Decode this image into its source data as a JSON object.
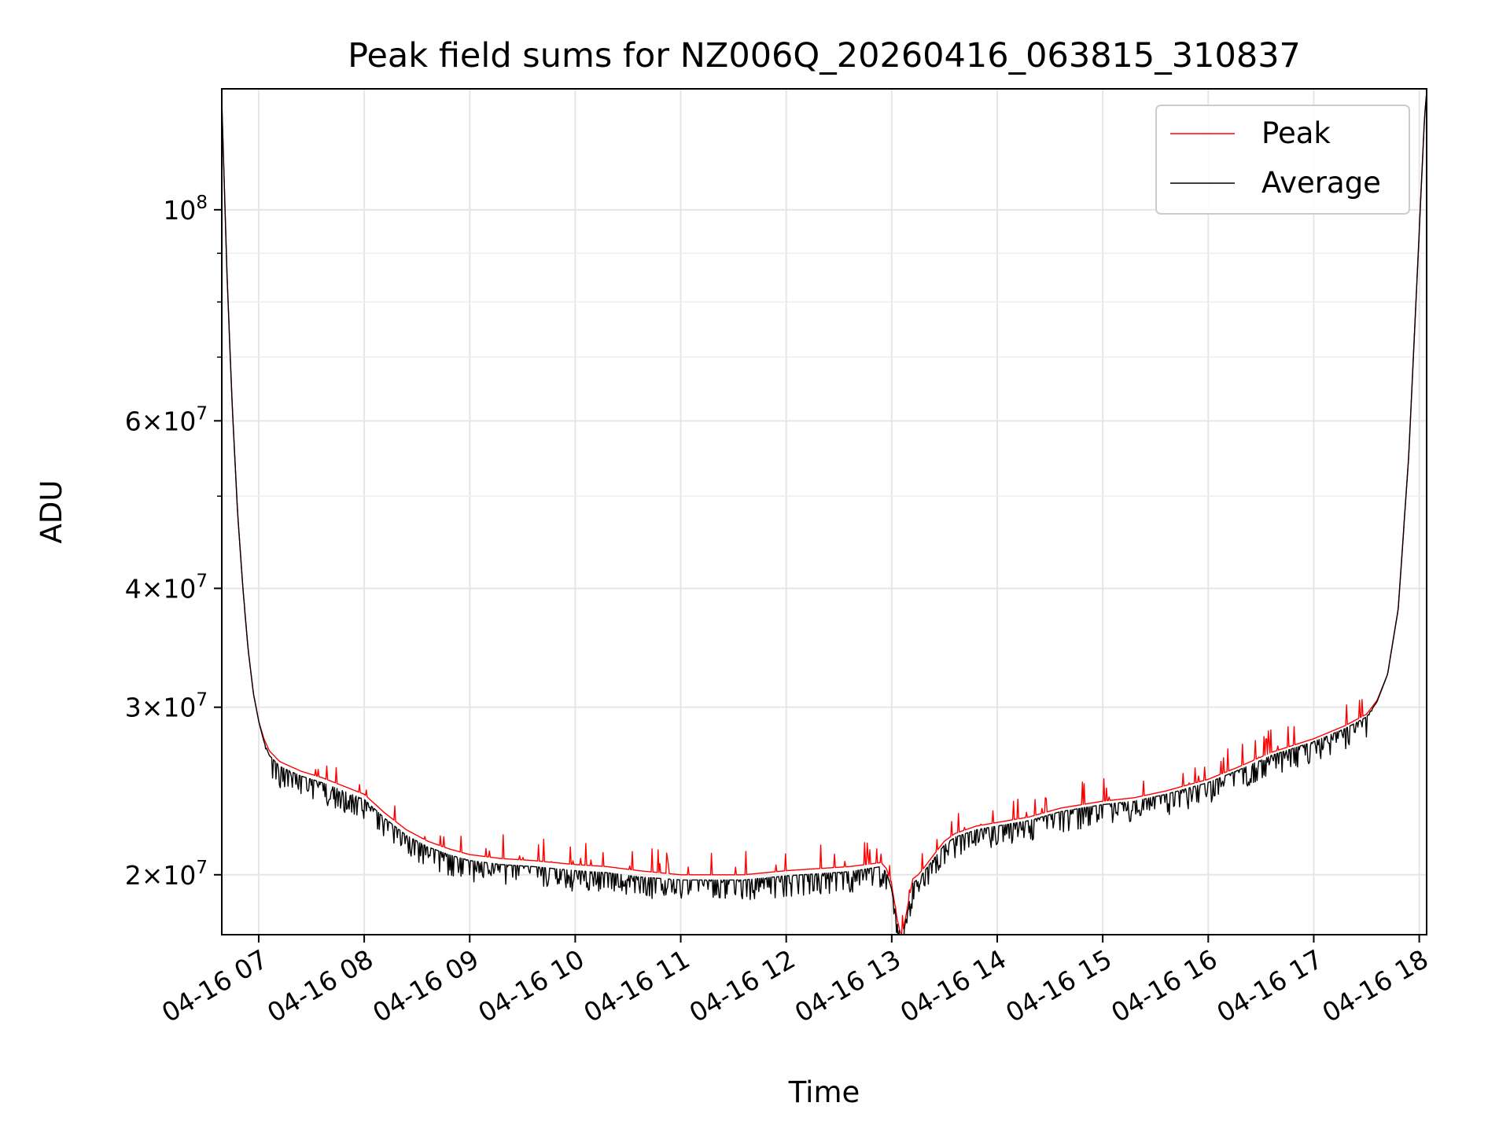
{
  "chart_data": {
    "type": "line",
    "title": "Peak field sums for NZ006Q_20260416_063815_310837",
    "xlabel": "Time",
    "ylabel": "ADU",
    "yscale": "log",
    "ylim": [
      17300000,
      134000000
    ],
    "xlim_hours": [
      6.65,
      18.07
    ],
    "grid": true,
    "legend_position": "upper right",
    "x_ticks": [
      {
        "value": 7,
        "label": "04-16 07"
      },
      {
        "value": 8,
        "label": "04-16 08"
      },
      {
        "value": 9,
        "label": "04-16 09"
      },
      {
        "value": 10,
        "label": "04-16 10"
      },
      {
        "value": 11,
        "label": "04-16 11"
      },
      {
        "value": 12,
        "label": "04-16 12"
      },
      {
        "value": 13,
        "label": "04-16 13"
      },
      {
        "value": 14,
        "label": "04-16 14"
      },
      {
        "value": 15,
        "label": "04-16 15"
      },
      {
        "value": 16,
        "label": "04-16 16"
      },
      {
        "value": 17,
        "label": "04-16 17"
      },
      {
        "value": 18,
        "label": "04-16 18"
      }
    ],
    "y_ticks": [
      {
        "value": 20000000,
        "mant": "2",
        "exp": "7"
      },
      {
        "value": 30000000,
        "mant": "3",
        "exp": "7"
      },
      {
        "value": 40000000,
        "mant": "4",
        "exp": "7"
      },
      {
        "value": 60000000,
        "mant": "6",
        "exp": "7"
      },
      {
        "value": 100000000,
        "mant": "",
        "exp": "8"
      }
    ],
    "y_minor_ticks": [
      50000000,
      70000000,
      80000000,
      90000000
    ],
    "times_hours": [
      6.65,
      6.7,
      6.75,
      6.8,
      6.85,
      6.9,
      6.95,
      7.0,
      7.05,
      7.1,
      7.2,
      7.4,
      7.6,
      7.8,
      8.0,
      8.2,
      8.4,
      8.6,
      8.8,
      9.0,
      9.3,
      9.6,
      10.0,
      10.3,
      10.6,
      11.0,
      11.3,
      11.6,
      12.0,
      12.3,
      12.6,
      12.9,
      12.95,
      13.0,
      13.05,
      13.08,
      13.1,
      13.15,
      13.2,
      13.25,
      13.3,
      13.4,
      13.5,
      13.6,
      13.8,
      14.0,
      14.3,
      14.6,
      15.0,
      15.3,
      15.6,
      16.0,
      16.3,
      16.6,
      17.0,
      17.3,
      17.5,
      17.6,
      17.7,
      17.8,
      17.9,
      18.0,
      18.05,
      18.07
    ],
    "series": [
      {
        "name": "Peak",
        "color": "#ff0000",
        "values": [
          130000000,
          85000000,
          62000000,
          48000000,
          40000000,
          34500000,
          31000000,
          29000000,
          27800000,
          27000000,
          26300000,
          25700000,
          25300000,
          24800000,
          24300000,
          23200000,
          22300000,
          21700000,
          21300000,
          21000000,
          20800000,
          20700000,
          20500000,
          20400000,
          20200000,
          20000000,
          20000000,
          20000000,
          20200000,
          20300000,
          20400000,
          20600000,
          20300000,
          19500000,
          18000000,
          17400000,
          17300000,
          18500000,
          19800000,
          20000000,
          20300000,
          21000000,
          21700000,
          22100000,
          22500000,
          22700000,
          23000000,
          23500000,
          23900000,
          24100000,
          24500000,
          25200000,
          26000000,
          26900000,
          27800000,
          28700000,
          29500000,
          30500000,
          32500000,
          38000000,
          55000000,
          95000000,
          125000000,
          133000000
        ]
      },
      {
        "name": "Average",
        "color": "#000000",
        "values": [
          130000000,
          85000000,
          62000000,
          48000000,
          40000000,
          34500000,
          31000000,
          29000000,
          27600000,
          26700000,
          26000000,
          25400000,
          25000000,
          24500000,
          24000000,
          22900000,
          22000000,
          21400000,
          21000000,
          20700000,
          20500000,
          20400000,
          20200000,
          20100000,
          19900000,
          19750000,
          19750000,
          19750000,
          19950000,
          20050000,
          20150000,
          20400000,
          20100000,
          19300000,
          17800000,
          17300000,
          17200000,
          18300000,
          19600000,
          19800000,
          20100000,
          20800000,
          21500000,
          21900000,
          22300000,
          22500000,
          22800000,
          23300000,
          23700000,
          23900000,
          24300000,
          25000000,
          25800000,
          26700000,
          27600000,
          28500000,
          29300000,
          30400000,
          32500000,
          38000000,
          55000000,
          95000000,
          125000000,
          133000000
        ]
      }
    ],
    "legend": [
      {
        "label": "Peak",
        "color": "#ff0000"
      },
      {
        "label": "Average",
        "color": "#000000"
      }
    ]
  }
}
